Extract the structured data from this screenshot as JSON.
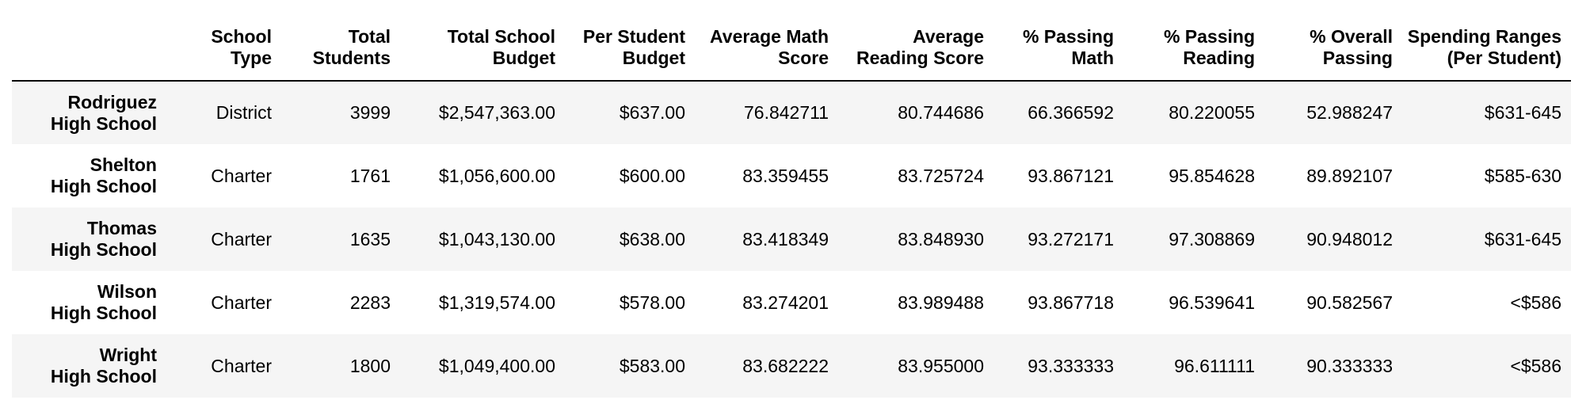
{
  "table": {
    "index_header": "",
    "columns": [
      "School\nType",
      "Total\nStudents",
      "Total School\nBudget",
      "Per Student\nBudget",
      "Average Math\nScore",
      "Average\nReading Score",
      "% Passing\nMath",
      "% Passing\nReading",
      "% Overall\nPassing",
      "Spending Ranges\n(Per Student)"
    ],
    "rows": [
      {
        "school": "Rodriguez High School",
        "cells": [
          "District",
          "3999",
          "$2,547,363.00",
          "$637.00",
          "76.842711",
          "80.744686",
          "66.366592",
          "80.220055",
          "52.988247",
          "$631-645"
        ]
      },
      {
        "school": "Shelton High School",
        "cells": [
          "Charter",
          "1761",
          "$1,056,600.00",
          "$600.00",
          "83.359455",
          "83.725724",
          "93.867121",
          "95.854628",
          "89.892107",
          "$585-630"
        ]
      },
      {
        "school": "Thomas High School",
        "cells": [
          "Charter",
          "1635",
          "$1,043,130.00",
          "$638.00",
          "83.418349",
          "83.848930",
          "93.272171",
          "97.308869",
          "90.948012",
          "$631-645"
        ]
      },
      {
        "school": "Wilson High School",
        "cells": [
          "Charter",
          "2283",
          "$1,319,574.00",
          "$578.00",
          "83.274201",
          "83.989488",
          "93.867718",
          "96.539641",
          "90.582567",
          "<$586"
        ]
      },
      {
        "school": "Wright High School",
        "cells": [
          "Charter",
          "1800",
          "$1,049,400.00",
          "$583.00",
          "83.682222",
          "83.955000",
          "93.333333",
          "96.611111",
          "90.333333",
          "<$586"
        ]
      }
    ]
  }
}
